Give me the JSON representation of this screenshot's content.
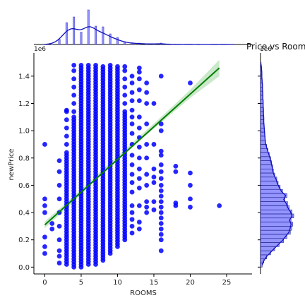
{
  "chart_data": {
    "type": "scatter",
    "title": "Price vs Room",
    "xlabel": "ROOMS",
    "ylabel": "newPrice",
    "xlim": [
      -1.5,
      28.5
    ],
    "ylim": [
      -0.05,
      1.57
    ],
    "y_offset_text": "1e6",
    "x_ticks": [
      "0",
      "5",
      "10",
      "15",
      "20",
      "25"
    ],
    "y_ticks": [
      "0.0",
      "0.2",
      "0.4",
      "0.6",
      "0.8",
      "1.0",
      "1.2",
      "1.4"
    ],
    "point_color": "#0000ff",
    "line_color": "#008000",
    "band_color": "#a8d8a8",
    "columns": [
      {
        "x": 0,
        "low": 0.1,
        "high": 0.9,
        "points": [
          0.1,
          0.15,
          0.22,
          0.4,
          0.45,
          0.5,
          0.9
        ]
      },
      {
        "x": 1,
        "low": 0.28,
        "high": 0.32,
        "points": [
          0.28,
          0.32
        ]
      },
      {
        "x": 2,
        "low": 0.03,
        "high": 0.78,
        "points": [
          0.03,
          0.08,
          0.12,
          0.2,
          0.3,
          0.4,
          0.5,
          0.6,
          0.7,
          0.78
        ]
      },
      {
        "x": 3,
        "low": 0.02,
        "high": 1.15,
        "dense_high": 0.82
      },
      {
        "x": 4,
        "low": 0.0,
        "high": 1.48,
        "dense_high": 1.1
      },
      {
        "x": 5,
        "low": 0.0,
        "high": 1.48
      },
      {
        "x": 6,
        "low": 0.02,
        "high": 1.48
      },
      {
        "x": 7,
        "low": 0.02,
        "high": 1.48
      },
      {
        "x": 8,
        "low": 0.05,
        "high": 1.48
      },
      {
        "x": 9,
        "low": 0.1,
        "high": 1.48
      },
      {
        "x": 10,
        "low": 0.15,
        "high": 1.48
      },
      {
        "x": 11,
        "low": 0.2,
        "high": 1.47,
        "dense_high": 1.12
      },
      {
        "x": 12,
        "low": 0.25,
        "high": 1.4,
        "points": [
          0.25,
          0.3,
          0.35,
          0.4,
          0.45,
          0.55,
          0.62,
          0.68,
          0.75,
          0.82,
          0.9,
          0.98,
          1.05,
          1.1,
          1.15,
          1.22,
          1.28,
          1.35,
          1.4
        ]
      },
      {
        "x": 13,
        "low": 0.28,
        "high": 1.46,
        "points": [
          0.28,
          0.33,
          0.45,
          0.58,
          0.65,
          0.72,
          0.8,
          0.88,
          0.95,
          1.02,
          1.1,
          1.22,
          1.3,
          1.38,
          1.43,
          1.46
        ]
      },
      {
        "x": 14,
        "low": 0.4,
        "high": 1.35,
        "points": [
          0.4,
          0.44,
          0.48,
          0.6,
          0.68,
          0.8,
          0.9,
          1.05,
          1.2,
          1.28,
          1.35
        ]
      },
      {
        "x": 15,
        "low": 0.42,
        "high": 1.2,
        "points": [
          0.42,
          0.48,
          0.62,
          0.66,
          0.72,
          0.9,
          1.2
        ]
      },
      {
        "x": 16,
        "low": 0.12,
        "high": 1.4,
        "points": [
          0.12,
          0.2,
          0.24,
          0.28,
          0.32,
          0.36,
          0.4,
          0.44,
          0.48,
          0.52,
          0.56,
          0.6,
          0.65,
          0.7,
          0.75,
          0.82,
          0.85,
          1.0,
          1.05,
          1.4
        ]
      },
      {
        "x": 18,
        "low": 0.45,
        "high": 0.74,
        "points": [
          0.45,
          0.47,
          0.7,
          0.74
        ]
      },
      {
        "x": 20,
        "low": 0.44,
        "high": 1.35,
        "points": [
          0.44,
          0.5,
          0.6,
          0.69,
          1.35
        ]
      },
      {
        "x": 24,
        "low": 0.45,
        "high": 0.45,
        "points": [
          0.45
        ]
      }
    ],
    "regression": {
      "x": [
        0,
        24
      ],
      "y": [
        0.31,
        1.46
      ]
    },
    "confidence_band": {
      "x": [
        0,
        4,
        8,
        12,
        16,
        20,
        24
      ],
      "upper": [
        0.335,
        0.52,
        0.72,
        0.91,
        1.1,
        1.3,
        1.52
      ],
      "lower": [
        0.285,
        0.48,
        0.69,
        0.88,
        1.06,
        1.24,
        1.4
      ]
    },
    "top_histogram": {
      "bins": [
        0,
        1,
        2,
        3,
        4,
        5,
        6,
        7,
        8,
        9,
        10,
        11,
        12,
        13,
        14,
        15,
        16,
        17,
        18,
        19,
        20,
        21,
        22,
        23,
        24
      ],
      "heights": [
        0.01,
        0.005,
        0.15,
        0.62,
        0.78,
        0.35,
        0.98,
        0.52,
        0.5,
        0.3,
        0.2,
        0.08,
        0.05,
        0.04,
        0.02,
        0.02,
        0.04,
        0,
        0.01,
        0,
        0.01,
        0,
        0,
        0,
        0.005
      ]
    },
    "right_histogram": {
      "bin_width": 0.03,
      "heights": [
        0.05,
        0.1,
        0.18,
        0.3,
        0.42,
        0.55,
        0.68,
        0.78,
        0.88,
        0.92,
        0.95,
        0.9,
        0.98,
        0.93,
        0.85,
        0.8,
        0.72,
        0.78,
        0.65,
        0.58,
        0.52,
        0.48,
        0.42,
        0.38,
        0.36,
        0.33,
        0.3,
        0.26,
        0.22,
        0.18,
        0.15,
        0.14,
        0.13,
        0.12,
        0.11,
        0.1,
        0.1,
        0.09,
        0.09,
        0.08,
        0.08,
        0.07,
        0.07,
        0.06,
        0.06,
        0.05,
        0.04,
        0.04,
        0.03,
        0.02
      ]
    }
  }
}
